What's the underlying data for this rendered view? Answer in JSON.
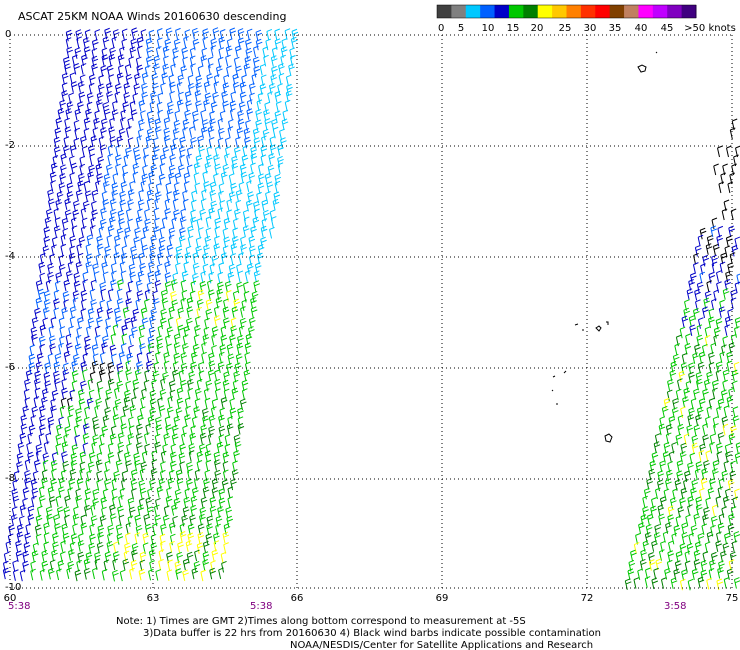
{
  "header": {
    "title": "ASCAT 25KM NOAA Winds 20160630 descending"
  },
  "legend": {
    "colors": [
      "#404040",
      "#808080",
      "#00c8ff",
      "#0060ff",
      "#0000c8",
      "#00c800",
      "#008000",
      "#ffff00",
      "#ffc800",
      "#ff8000",
      "#ff3000",
      "#ff0000",
      "#804000",
      "#c08060",
      "#ff00ff",
      "#c000ff",
      "#8000c0",
      "#400080"
    ],
    "labels": [
      "0",
      "5",
      "10",
      "15",
      "20",
      "25",
      "30",
      "35",
      "40",
      "45",
      ">50 knots"
    ]
  },
  "axes": {
    "x_ticks": [
      "60",
      "63",
      "66",
      "69",
      "72",
      "75"
    ],
    "y_ticks": [
      "0",
      "-2",
      "-4",
      "-6",
      "-8",
      "-10"
    ]
  },
  "times": [
    "5:38",
    "5:38",
    "3:58"
  ],
  "notes": [
    "Note: 1) Times are GMT 2)Times along bottom correspond to measurement at -5S",
    "3)Data buffer is 22 hrs from 20160630 4) Black wind barbs indicate possible contamination",
    "NOAA/NESDIS/Center for Satellite Applications and Research"
  ],
  "colors": {
    "grid": "#000000",
    "time_label": "#800080",
    "wind_dark_blue": "#0000c8",
    "wind_blue": "#0060ff",
    "wind_light_blue": "#00c8ff",
    "wind_green": "#00c800",
    "wind_dark_green": "#008000",
    "wind_yellow": "#ffff00",
    "contaminated": "#000000"
  }
}
